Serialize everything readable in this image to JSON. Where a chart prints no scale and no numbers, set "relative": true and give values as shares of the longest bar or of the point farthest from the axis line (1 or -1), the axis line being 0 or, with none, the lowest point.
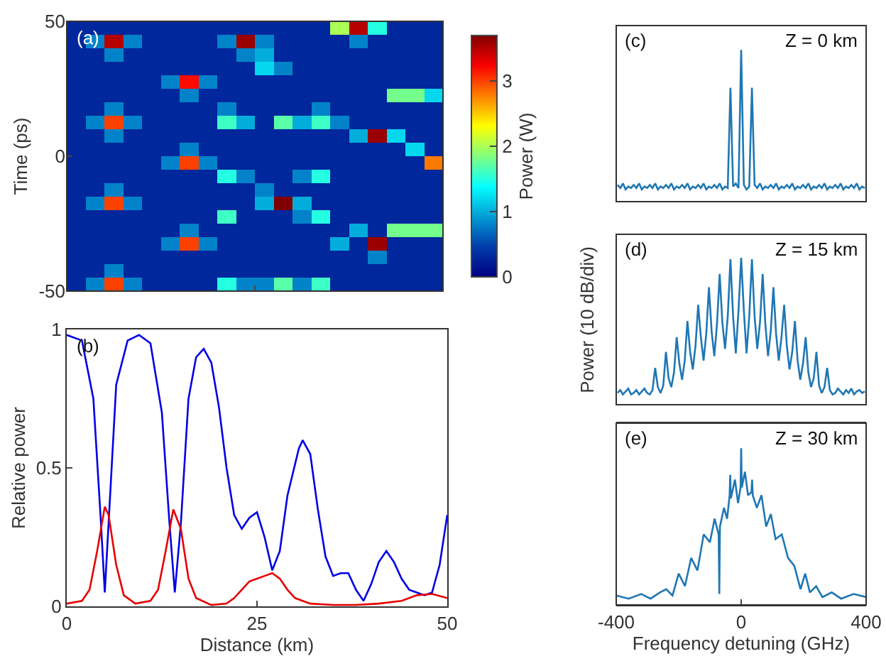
{
  "chart_data": [
    {
      "type": "heatmap",
      "ylabel": "Time (ps)",
      "clabel": "Power (W)",
      "annotations": [
        "(a)"
      ],
      "tick_labels": "y",
      "x": [
        1.25,
        3.75,
        6.25,
        8.75,
        11.25,
        13.75,
        16.25,
        18.75,
        21.25,
        23.75,
        26.25,
        28.75,
        31.25,
        33.75,
        36.25,
        38.75,
        41.25,
        43.75,
        46.25,
        48.75
      ],
      "y": [
        47.5,
        42.5,
        37.5,
        32.5,
        27.5,
        22.5,
        17.5,
        12.5,
        7.5,
        2.5,
        -2.5,
        -7.5,
        -12.5,
        -17.5,
        -22.5,
        -27.5,
        -32.5,
        -37.5,
        -42.5,
        -47.5
      ],
      "cells": [
        [
          0.3,
          0.3,
          0.3,
          0.3,
          0.3,
          0.3,
          0.3,
          0.3,
          0.3,
          0.3,
          0.3,
          0.3,
          0.3,
          0.3,
          2.0,
          3.5,
          1.5,
          0.3,
          0.3,
          0.3
        ],
        [
          0.3,
          0.8,
          3.5,
          0.8,
          0.3,
          0.3,
          0.3,
          0.3,
          0.8,
          3.6,
          0.8,
          0.3,
          0.3,
          0.3,
          0.3,
          0.8,
          0.3,
          0.3,
          0.3,
          0.3
        ],
        [
          0.3,
          0.3,
          0.8,
          0.3,
          0.3,
          0.3,
          0.3,
          0.3,
          0.3,
          0.8,
          1.0,
          0.3,
          0.3,
          0.3,
          0.3,
          0.3,
          0.3,
          0.3,
          0.3,
          0.3
        ],
        [
          0.3,
          0.3,
          0.3,
          0.3,
          0.3,
          0.3,
          0.3,
          0.3,
          0.3,
          0.3,
          1.2,
          0.8,
          0.3,
          0.3,
          0.3,
          0.3,
          0.3,
          0.3,
          0.3,
          0.3
        ],
        [
          0.3,
          0.3,
          0.3,
          0.3,
          0.3,
          0.8,
          3.2,
          0.8,
          0.3,
          0.3,
          0.3,
          0.3,
          0.3,
          0.3,
          0.3,
          0.3,
          0.3,
          0.3,
          0.3,
          0.3
        ],
        [
          0.3,
          0.3,
          0.3,
          0.3,
          0.3,
          0.3,
          0.8,
          0.3,
          0.3,
          0.3,
          0.3,
          0.3,
          0.3,
          0.3,
          0.3,
          0.3,
          0.3,
          1.8,
          1.8,
          1.2
        ],
        [
          0.3,
          0.3,
          0.8,
          0.3,
          0.3,
          0.3,
          0.3,
          0.3,
          0.8,
          0.3,
          0.3,
          0.3,
          0.3,
          0.8,
          0.3,
          0.3,
          0.3,
          0.3,
          0.3,
          0.3
        ],
        [
          0.3,
          0.8,
          3.0,
          0.8,
          0.3,
          0.3,
          0.3,
          0.3,
          1.6,
          1.0,
          0.3,
          1.7,
          1.0,
          1.6,
          0.8,
          0.3,
          0.3,
          0.3,
          0.3,
          0.3
        ],
        [
          0.3,
          0.3,
          0.8,
          0.3,
          0.3,
          0.3,
          0.3,
          0.3,
          0.3,
          0.3,
          0.3,
          0.3,
          0.3,
          0.3,
          0.3,
          1.0,
          3.6,
          1.2,
          0.3,
          0.3
        ],
        [
          0.3,
          0.3,
          0.3,
          0.3,
          0.3,
          0.3,
          0.8,
          0.3,
          0.3,
          0.3,
          0.3,
          0.3,
          0.3,
          0.3,
          0.3,
          0.3,
          0.3,
          0.3,
          1.2,
          0.3
        ],
        [
          0.3,
          0.3,
          0.3,
          0.3,
          0.3,
          0.8,
          3.0,
          0.8,
          0.3,
          0.3,
          0.3,
          0.3,
          0.3,
          0.3,
          0.3,
          0.3,
          0.3,
          0.3,
          0.3,
          2.8
        ],
        [
          0.3,
          0.3,
          0.3,
          0.3,
          0.3,
          0.3,
          0.3,
          0.3,
          1.5,
          0.8,
          0.3,
          0.3,
          0.8,
          1.5,
          0.3,
          0.3,
          0.3,
          0.3,
          0.3,
          0.3
        ],
        [
          0.3,
          0.3,
          0.8,
          0.3,
          0.3,
          0.3,
          0.3,
          0.3,
          0.3,
          0.3,
          0.8,
          0.3,
          0.3,
          0.3,
          0.3,
          0.3,
          0.3,
          0.3,
          0.3,
          0.3
        ],
        [
          0.3,
          0.8,
          3.0,
          0.8,
          0.3,
          0.3,
          0.3,
          0.3,
          0.3,
          0.3,
          1.0,
          3.7,
          1.0,
          0.3,
          0.3,
          0.3,
          0.3,
          0.3,
          0.3,
          0.3
        ],
        [
          0.3,
          0.3,
          0.3,
          0.3,
          0.3,
          0.3,
          0.3,
          0.3,
          1.6,
          0.3,
          0.3,
          0.3,
          0.8,
          1.5,
          0.3,
          0.3,
          0.3,
          0.3,
          0.3,
          0.3
        ],
        [
          0.3,
          0.3,
          0.3,
          0.3,
          0.3,
          0.3,
          0.8,
          0.3,
          0.3,
          0.3,
          0.3,
          0.3,
          0.3,
          0.3,
          0.3,
          1.0,
          0.3,
          1.8,
          1.8,
          1.8
        ],
        [
          0.3,
          0.3,
          0.3,
          0.3,
          0.3,
          0.8,
          3.0,
          0.8,
          0.3,
          0.3,
          0.3,
          0.3,
          0.3,
          0.3,
          1.0,
          0.3,
          3.6,
          0.3,
          0.3,
          0.3
        ],
        [
          0.3,
          0.3,
          0.3,
          0.3,
          0.3,
          0.3,
          0.3,
          0.3,
          0.3,
          0.3,
          0.3,
          0.3,
          0.3,
          0.3,
          0.3,
          0.3,
          0.8,
          0.3,
          0.3,
          0.3
        ],
        [
          0.3,
          0.3,
          0.8,
          0.3,
          0.3,
          0.3,
          0.3,
          0.3,
          0.3,
          0.3,
          0.3,
          0.3,
          0.3,
          0.3,
          0.3,
          0.3,
          0.3,
          0.3,
          0.3,
          0.3
        ],
        [
          0.3,
          0.8,
          3.0,
          0.8,
          0.3,
          0.3,
          0.3,
          0.3,
          1.5,
          0.8,
          0.8,
          1.7,
          0.8,
          1.6,
          0.3,
          0.3,
          0.3,
          0.3,
          0.3,
          0.3
        ]
      ],
      "clim": [
        0,
        3.7
      ],
      "cticks": [
        0,
        1,
        2,
        3
      ],
      "xlim": [
        0,
        50
      ],
      "xticks": [
        0,
        25,
        50
      ],
      "ylim": [
        -50,
        50
      ],
      "yticks": [
        -50,
        0,
        50
      ]
    },
    {
      "type": "line",
      "xlabel": "Distance (km)",
      "ylabel": "Relative power",
      "annotations": [
        "(b)"
      ],
      "xlim": [
        0,
        50
      ],
      "xticks": [
        0,
        25,
        50
      ],
      "ylim": [
        0,
        1
      ],
      "yticks": [
        0,
        0.5,
        1
      ],
      "series": [
        {
          "color": "#0000e6",
          "x": [
            0,
            2,
            3.5,
            4.5,
            5,
            5.5,
            6.5,
            8,
            9.5,
            11,
            12.5,
            13.5,
            14.2,
            15,
            16,
            17,
            18,
            19,
            20,
            21,
            22,
            23,
            24,
            25,
            26,
            27,
            28,
            29,
            30.5,
            31,
            32,
            33,
            34,
            35,
            36,
            37,
            38,
            39,
            40,
            41,
            42,
            43,
            44,
            45,
            46,
            47,
            48,
            49,
            50
          ],
          "values": [
            0.98,
            0.96,
            0.75,
            0.3,
            0.05,
            0.3,
            0.8,
            0.96,
            0.98,
            0.95,
            0.7,
            0.3,
            0.05,
            0.3,
            0.75,
            0.9,
            0.93,
            0.88,
            0.72,
            0.5,
            0.33,
            0.28,
            0.32,
            0.34,
            0.25,
            0.13,
            0.2,
            0.4,
            0.57,
            0.6,
            0.55,
            0.35,
            0.18,
            0.11,
            0.12,
            0.12,
            0.06,
            0.02,
            0.08,
            0.16,
            0.2,
            0.16,
            0.1,
            0.06,
            0.05,
            0.04,
            0.05,
            0.15,
            0.33
          ]
        },
        {
          "color": "#e60000",
          "x": [
            0,
            2,
            3,
            4,
            5,
            5.5,
            6.5,
            7.5,
            9,
            11,
            12,
            13,
            14,
            15,
            16,
            17,
            19,
            21,
            22,
            23,
            24,
            25,
            26,
            27,
            28,
            29,
            30,
            32,
            35,
            38,
            41,
            44,
            46,
            48,
            50
          ],
          "values": [
            0.01,
            0.02,
            0.06,
            0.2,
            0.36,
            0.33,
            0.15,
            0.04,
            0.01,
            0.02,
            0.06,
            0.2,
            0.35,
            0.28,
            0.1,
            0.03,
            0.005,
            0.01,
            0.03,
            0.06,
            0.09,
            0.1,
            0.11,
            0.12,
            0.1,
            0.06,
            0.03,
            0.01,
            0.005,
            0.005,
            0.01,
            0.02,
            0.04,
            0.045,
            0.03
          ]
        }
      ]
    },
    {
      "type": "line",
      "relative": true,
      "annotations": [
        "(c)",
        "Z = 0 km"
      ],
      "categories": [
        null,
        null,
        null,
        null,
        null,
        null,
        null,
        null,
        null,
        null,
        null,
        null,
        null,
        null,
        null,
        null,
        null,
        null,
        null,
        null,
        null,
        null,
        null,
        null,
        null,
        null,
        null,
        null,
        null,
        null,
        null,
        null,
        null,
        null,
        null,
        null,
        null,
        null,
        null,
        null,
        null,
        null,
        null,
        null,
        null,
        null,
        null,
        null,
        null,
        null,
        null,
        null,
        null,
        null,
        null,
        null,
        null,
        null,
        null,
        null,
        null,
        null,
        null,
        null,
        null,
        null,
        null,
        null,
        null,
        null,
        null,
        null,
        null,
        null,
        null,
        null,
        null,
        null,
        null,
        null,
        null,
        null,
        null,
        null,
        null,
        null,
        null,
        null,
        null,
        null,
        null,
        null,
        null
      ],
      "series": [
        {
          "color": "#1f77b4",
          "values": [
            0.11,
            0.09,
            0.12,
            0.08,
            0.1,
            0.09,
            0.11,
            0.09,
            0.12,
            0.08,
            0.1,
            0.09,
            0.11,
            0.09,
            0.12,
            0.08,
            0.1,
            0.09,
            0.11,
            0.09,
            0.12,
            0.08,
            0.1,
            0.09,
            0.11,
            0.09,
            0.12,
            0.08,
            0.1,
            0.09,
            0.11,
            0.09,
            0.12,
            0.08,
            0.1,
            0.09,
            0.11,
            0.09,
            0.12,
            0.08,
            0.1,
            0.09,
            0.75,
            0.1,
            0.12,
            0.09,
            1,
            0.11,
            0.08,
            0.1,
            0.75,
            0.11,
            0.09,
            0.12,
            0.08,
            0.1,
            0.09,
            0.11,
            0.09,
            0.12,
            0.08,
            0.1,
            0.09,
            0.11,
            0.09,
            0.12,
            0.08,
            0.1,
            0.09,
            0.11,
            0.09,
            0.12,
            0.08,
            0.1,
            0.09,
            0.11,
            0.09,
            0.12,
            0.08,
            0.1,
            0.09,
            0.11,
            0.09,
            0.12,
            0.08,
            0.1,
            0.09,
            0.11,
            0.09,
            0.12,
            0.08,
            0.1,
            0.09
          ]
        }
      ]
    },
    {
      "type": "line",
      "relative": true,
      "ylabel": "Power (10 dB/div)",
      "annotations": [
        "(d)",
        "Z = 15 km"
      ],
      "categories": [
        null,
        null,
        null,
        null,
        null,
        null,
        null,
        null,
        null,
        null,
        null,
        null,
        null,
        null,
        null,
        null,
        null,
        null,
        null,
        null,
        null,
        null,
        null,
        null,
        null,
        null,
        null,
        null,
        null,
        null,
        null,
        null,
        null,
        null,
        null,
        null,
        null,
        null,
        null,
        null,
        null,
        null,
        null,
        null,
        null,
        null,
        null,
        null,
        null,
        null,
        null,
        null,
        null,
        null,
        null,
        null,
        null,
        null,
        null,
        null,
        null,
        null,
        null,
        null,
        null,
        null,
        null,
        null,
        null,
        null,
        null,
        null,
        null,
        null,
        null,
        null,
        null,
        null,
        null,
        null,
        null,
        null,
        null,
        null,
        null,
        null,
        null,
        null,
        null,
        null,
        null,
        null,
        null
      ],
      "series": [
        {
          "color": "#1f77b4",
          "values": [
            0.08,
            0.1,
            0.07,
            0.09,
            0.11,
            0.07,
            0.08,
            0.1,
            0.07,
            0.09,
            0.11,
            0.08,
            0.07,
            0.1,
            0.25,
            0.12,
            0.08,
            0.13,
            0.36,
            0.18,
            0.12,
            0.22,
            0.46,
            0.28,
            0.17,
            0.3,
            0.57,
            0.36,
            0.24,
            0.4,
            0.68,
            0.46,
            0.3,
            0.48,
            0.8,
            0.5,
            0.33,
            0.55,
            0.89,
            0.56,
            0.38,
            0.6,
            0.99,
            0.6,
            0.35,
            0.64,
            1,
            0.64,
            0.35,
            0.6,
            0.99,
            0.6,
            0.38,
            0.56,
            0.89,
            0.55,
            0.33,
            0.5,
            0.8,
            0.48,
            0.3,
            0.46,
            0.68,
            0.4,
            0.24,
            0.36,
            0.57,
            0.3,
            0.17,
            0.28,
            0.46,
            0.22,
            0.12,
            0.18,
            0.36,
            0.13,
            0.08,
            0.12,
            0.25,
            0.1,
            0.07,
            0.08,
            0.11,
            0.09,
            0.07,
            0.1,
            0.08,
            0.11,
            0.07,
            0.09,
            0.1,
            0.08,
            0.09
          ]
        }
      ]
    },
    {
      "type": "line",
      "relative": true,
      "xlabel": "Frequency detuning (GHz)",
      "annotations": [
        "(e)",
        "Z = 30 km"
      ],
      "tick_labels": "x",
      "xlim": [
        -400,
        400
      ],
      "xticks": [
        -400,
        0,
        400
      ],
      "series": [
        {
          "color": "#1f77b4",
          "x": [
            -400,
            -360,
            -320,
            -290,
            -260,
            -240,
            -220,
            -200,
            -180,
            -160,
            -140,
            -120,
            -100,
            -85,
            -72,
            -70,
            -68,
            -55,
            -45,
            -37,
            -35,
            -33,
            -20,
            -10,
            -2,
            0,
            2,
            12,
            22,
            33,
            35,
            37,
            50,
            65,
            80,
            95,
            110,
            130,
            150,
            170,
            190,
            205,
            220,
            240,
            260,
            290,
            320,
            360,
            400
          ],
          "values": [
            0.06,
            0.04,
            0.07,
            0.04,
            0.08,
            0.1,
            0.06,
            0.2,
            0.12,
            0.3,
            0.22,
            0.45,
            0.4,
            0.55,
            0.45,
            0.07,
            0.5,
            0.62,
            0.55,
            0.7,
            0.83,
            0.68,
            0.8,
            0.65,
            0.75,
            1,
            0.75,
            0.85,
            0.7,
            0.72,
            0.8,
            0.7,
            0.62,
            0.7,
            0.5,
            0.58,
            0.42,
            0.45,
            0.3,
            0.25,
            0.1,
            0.2,
            0.08,
            0.12,
            0.05,
            0.08,
            0.04,
            0.07,
            0.05
          ]
        }
      ]
    }
  ]
}
